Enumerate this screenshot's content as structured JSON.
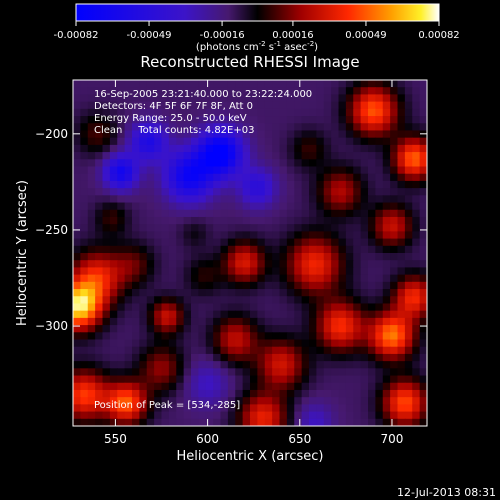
{
  "chart_data": {
    "type": "heatmap",
    "title": "Reconstructed RHESSI Image",
    "xlabel": "Heliocentric X (arcsec)",
    "ylabel": "Heliocentric Y (arcsec)",
    "xlim": [
      527,
      719
    ],
    "ylim": [
      -352,
      -172
    ],
    "x_ticks": [
      550,
      600,
      650,
      700
    ],
    "y_ticks": [
      -200,
      -250,
      -300
    ],
    "colorbar": {
      "min": -0.00082,
      "max": 0.00082,
      "ticks": [
        "-0.00082",
        "-0.00049",
        "-0.00016",
        "0.00016",
        "0.00049",
        "0.00082"
      ],
      "unit_text": "(photons cm",
      "unit_parts": [
        {
          "t": "(photons cm",
          "sup": false
        },
        {
          "t": "-2",
          "sup": true
        },
        {
          "t": " s",
          "sup": false
        },
        {
          "t": "-1",
          "sup": true
        },
        {
          "t": " asec",
          "sup": false
        },
        {
          "t": "-2",
          "sup": true
        },
        {
          "t": ")",
          "sup": false
        }
      ]
    },
    "annotations": [
      "16-Sep-2005 23:21:40.000 to 23:22:24.000",
      "Detectors: 4F 5F 6F 7F 8F, Att 0",
      "Energy Range: 25.0 - 50.0 keV",
      "Clean     Total counts: 4.82E+03"
    ],
    "peak_label": "Position of Peak = [534,-285]",
    "blobs": [
      {
        "x": 530,
        "y": -290,
        "value": 0.00082,
        "w": 12
      },
      {
        "x": 540,
        "y": -275,
        "value": 0.0005,
        "w": 14
      },
      {
        "x": 533,
        "y": -336,
        "value": 0.00055,
        "w": 13
      },
      {
        "x": 556,
        "y": -340,
        "value": 0.0006,
        "w": 11
      },
      {
        "x": 575,
        "y": -322,
        "value": 0.0003,
        "w": 12
      },
      {
        "x": 578,
        "y": -295,
        "value": 0.0004,
        "w": 9
      },
      {
        "x": 560,
        "y": -268,
        "value": 0.00022,
        "w": 11
      },
      {
        "x": 598,
        "y": -274,
        "value": 0.00016,
        "w": 10
      },
      {
        "x": 620,
        "y": -267,
        "value": 0.00044,
        "w": 11
      },
      {
        "x": 615,
        "y": -307,
        "value": 0.00038,
        "w": 12
      },
      {
        "x": 640,
        "y": -320,
        "value": 0.00042,
        "w": 13
      },
      {
        "x": 630,
        "y": -348,
        "value": 0.00048,
        "w": 13
      },
      {
        "x": 658,
        "y": -268,
        "value": 0.0005,
        "w": 15
      },
      {
        "x": 672,
        "y": -300,
        "value": 0.00052,
        "w": 13
      },
      {
        "x": 700,
        "y": -305,
        "value": 0.00066,
        "w": 12
      },
      {
        "x": 712,
        "y": -285,
        "value": 0.0005,
        "w": 11
      },
      {
        "x": 700,
        "y": -248,
        "value": 0.0004,
        "w": 11
      },
      {
        "x": 712,
        "y": -213,
        "value": 0.00062,
        "w": 11
      },
      {
        "x": 690,
        "y": -188,
        "value": 0.0006,
        "w": 13
      },
      {
        "x": 707,
        "y": -340,
        "value": 0.00058,
        "w": 12
      },
      {
        "x": 672,
        "y": -230,
        "value": 0.00035,
        "w": 12
      },
      {
        "x": 655,
        "y": -208,
        "value": 0.00018,
        "w": 10
      },
      {
        "x": 540,
        "y": -200,
        "value": 0.0002,
        "w": 11
      },
      {
        "x": 548,
        "y": -244,
        "value": 0.00018,
        "w": 9
      },
      {
        "x": 593,
        "y": -252,
        "value": 0.0001,
        "w": 8
      },
      {
        "x": 590,
        "y": -222,
        "value": -0.0006,
        "w": 13
      },
      {
        "x": 607,
        "y": -210,
        "value": -0.00075,
        "w": 12
      },
      {
        "x": 553,
        "y": -220,
        "value": -0.00055,
        "w": 9
      },
      {
        "x": 568,
        "y": -204,
        "value": -0.00045,
        "w": 10
      },
      {
        "x": 627,
        "y": -228,
        "value": -0.00035,
        "w": 10
      },
      {
        "x": 600,
        "y": -330,
        "value": -0.0002,
        "w": 12
      },
      {
        "x": 658,
        "y": -350,
        "value": -0.0002,
        "w": 10
      }
    ]
  },
  "footer": {
    "timestamp": "12-Jul-2013 08:31"
  }
}
